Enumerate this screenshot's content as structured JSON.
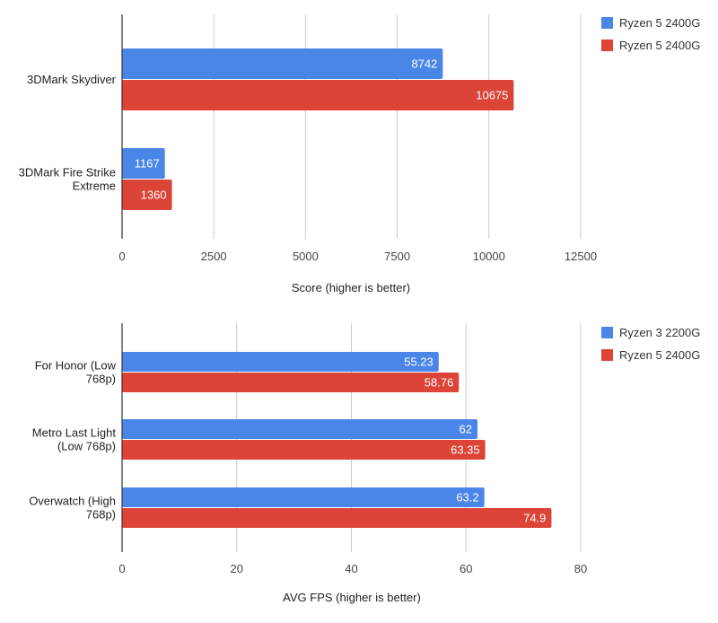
{
  "colors": {
    "blue": "#4a86e8",
    "red": "#db4437",
    "grid": "#cccccc",
    "axis": "#333333"
  },
  "chart_data": [
    {
      "type": "bar",
      "orientation": "horizontal",
      "categories": [
        "3DMark Skydiver",
        "3DMark Fire Strike Extreme"
      ],
      "series": [
        {
          "name": "Ryzen 5 2400G",
          "color": "#4a86e8",
          "values": [
            8742,
            1167
          ]
        },
        {
          "name": "Ryzen 5 2400G",
          "color": "#db4437",
          "values": [
            10675,
            1360
          ]
        }
      ],
      "xlabel": "Score (higher is better)",
      "xlim": [
        0,
        12500
      ],
      "xticks": [
        0,
        2500,
        5000,
        7500,
        10000,
        12500
      ],
      "grid": true,
      "legend": "top-right",
      "data_labels": true
    },
    {
      "type": "bar",
      "orientation": "horizontal",
      "categories": [
        "For Honor (Low 768p)",
        "Metro Last Light (Low 768p)",
        "Overwatch (High 768p)"
      ],
      "series": [
        {
          "name": "Ryzen 3 2200G",
          "color": "#4a86e8",
          "values": [
            55.23,
            62,
            63.2
          ]
        },
        {
          "name": "Ryzen 5 2400G",
          "color": "#db4437",
          "values": [
            58.76,
            63.35,
            74.9
          ]
        }
      ],
      "xlabel": "AVG FPS (higher is better)",
      "xlim": [
        0,
        80
      ],
      "xticks": [
        0,
        20,
        40,
        60,
        80
      ],
      "grid": true,
      "legend": "top-right",
      "data_labels": true
    }
  ]
}
